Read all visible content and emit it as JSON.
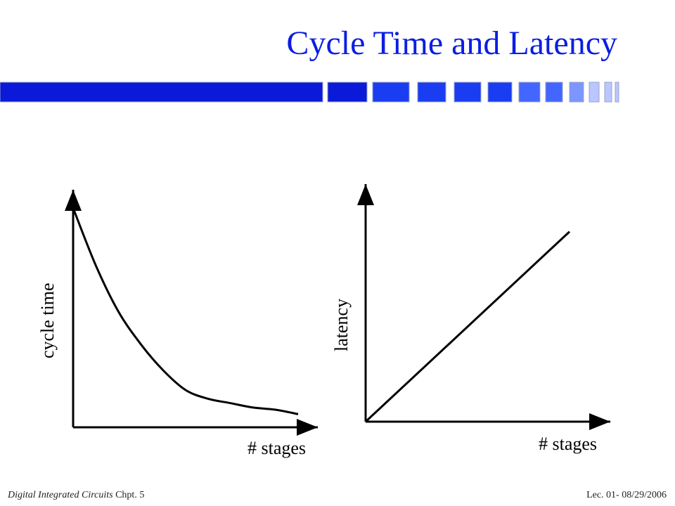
{
  "slide": {
    "title": "Cycle Time and Latency",
    "title_color": "#0b1ee0",
    "bar_colors": [
      "#0a1ad8",
      "#1a3df2",
      "#4266ff",
      "#7c95ff",
      "#b9c6ff"
    ],
    "footer": {
      "course": "Digital Integrated Circuits",
      "chapter": "Chpt. 5",
      "lecture": "Lec. 01- 08/29/2006"
    }
  },
  "chart_data": [
    {
      "type": "line",
      "title": "",
      "xlabel": "# stages",
      "ylabel": "cycle time",
      "x": [
        0,
        1,
        2,
        3,
        4,
        5,
        6,
        7,
        8,
        9,
        10
      ],
      "series": [
        {
          "values": [
            1.0,
            0.74,
            0.53,
            0.38,
            0.26,
            0.17,
            0.13,
            0.11,
            0.09,
            0.08,
            0.06
          ]
        }
      ],
      "xlim": [
        0,
        10
      ],
      "ylim": [
        0,
        1.05
      ],
      "grid": false
    },
    {
      "type": "line",
      "title": "",
      "xlabel": "# stages",
      "ylabel": "latency",
      "x": [
        0,
        10
      ],
      "series": [
        {
          "values": [
            0,
            1.0
          ]
        }
      ],
      "xlim": [
        0,
        12
      ],
      "ylim": [
        0,
        1.25
      ],
      "grid": false
    }
  ]
}
